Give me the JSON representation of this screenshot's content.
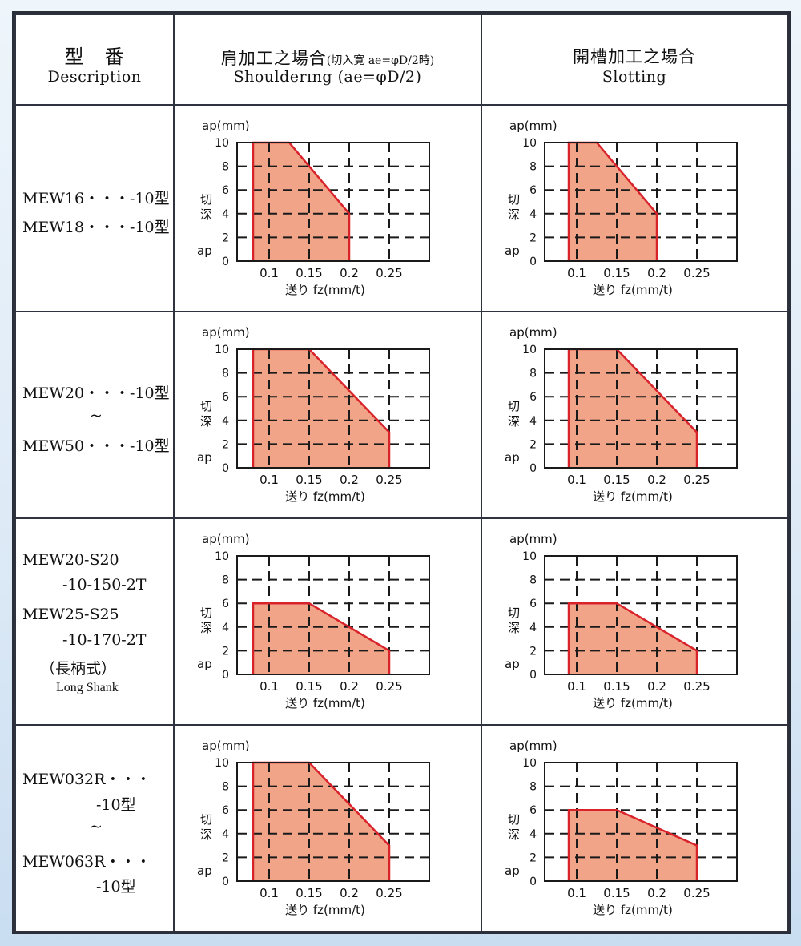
{
  "header": {
    "description_jp": "型　番",
    "description_en": "Description",
    "shouldering_jp_main": "肩加工之場合",
    "shouldering_jp_note": "(切入寛 ae=φD/2時)",
    "shouldering_en": "Shoulderıng (ae=φD/2)",
    "slotting_jp": "開槽加工之場合",
    "slotting_en": "Slotting"
  },
  "axis_text": {
    "y_title": "ap(mm)",
    "y_side_1": "切",
    "y_side_2": "深",
    "y_side_3": "ap",
    "x_title": "送り fz(mm/t)"
  },
  "colors": {
    "fill": "#f2a488",
    "line": "#d9232b",
    "grid": "#1a1a1a",
    "border": "#2f3340"
  },
  "rows": [
    {
      "desc": [
        "MEW16・・・-10型",
        "MEW18・・・-10型"
      ]
    },
    {
      "desc": [
        "MEW20・・・-10型",
        "~",
        "MEW50・・・-10型"
      ]
    },
    {
      "desc": [
        "MEW20-S20",
        "-10-150-2T",
        "MEW25-S25",
        "-10-170-2T",
        "（長柄式）",
        "Long Shank"
      ]
    },
    {
      "desc": [
        "MEW032R・・・",
        "-10型",
        "~",
        "MEW063R・・・",
        "-10型"
      ]
    }
  ],
  "chart_data": [
    {
      "type": "area",
      "row": 1,
      "mode": "Shouldering",
      "x": [
        0.08,
        0.08,
        0.125,
        0.2,
        0.2
      ],
      "y": [
        0,
        10,
        10,
        4,
        0
      ],
      "xlim": [
        0.06,
        0.3
      ],
      "ylim": [
        0,
        10
      ],
      "xticks": [
        "0.1",
        "0.15",
        "0.2",
        "0.25"
      ],
      "yticks": [
        "0",
        "2",
        "4",
        "6",
        "8",
        "10"
      ]
    },
    {
      "type": "area",
      "row": 1,
      "mode": "Slotting",
      "x": [
        0.09,
        0.09,
        0.125,
        0.2,
        0.2
      ],
      "y": [
        0,
        10,
        10,
        4,
        0
      ],
      "xlim": [
        0.06,
        0.3
      ],
      "ylim": [
        0,
        10
      ],
      "xticks": [
        "0.1",
        "0.15",
        "0.2",
        "0.25"
      ],
      "yticks": [
        "0",
        "2",
        "4",
        "6",
        "8",
        "10"
      ]
    },
    {
      "type": "area",
      "row": 2,
      "mode": "Shouldering",
      "x": [
        0.08,
        0.08,
        0.15,
        0.25,
        0.25
      ],
      "y": [
        0,
        10,
        10,
        3,
        0
      ],
      "xlim": [
        0.06,
        0.3
      ],
      "ylim": [
        0,
        10
      ],
      "xticks": [
        "0.1",
        "0.15",
        "0.2",
        "0.25"
      ],
      "yticks": [
        "0",
        "2",
        "4",
        "6",
        "8",
        "10"
      ]
    },
    {
      "type": "area",
      "row": 2,
      "mode": "Slotting",
      "x": [
        0.09,
        0.09,
        0.15,
        0.25,
        0.25
      ],
      "y": [
        0,
        10,
        10,
        3,
        0
      ],
      "xlim": [
        0.06,
        0.3
      ],
      "ylim": [
        0,
        10
      ],
      "xticks": [
        "0.1",
        "0.15",
        "0.2",
        "0.25"
      ],
      "yticks": [
        "0",
        "2",
        "4",
        "6",
        "8",
        "10"
      ]
    },
    {
      "type": "area",
      "row": 3,
      "mode": "Shouldering",
      "x": [
        0.08,
        0.08,
        0.15,
        0.25,
        0.25
      ],
      "y": [
        0,
        6,
        6,
        2,
        0
      ],
      "xlim": [
        0.06,
        0.3
      ],
      "ylim": [
        0,
        10
      ],
      "xticks": [
        "0.1",
        "0.15",
        "0.2",
        "0.25"
      ],
      "yticks": [
        "0",
        "2",
        "4",
        "6",
        "8",
        "10"
      ]
    },
    {
      "type": "area",
      "row": 3,
      "mode": "Slotting",
      "x": [
        0.09,
        0.09,
        0.15,
        0.25,
        0.25
      ],
      "y": [
        0,
        6,
        6,
        2,
        0
      ],
      "xlim": [
        0.06,
        0.3
      ],
      "ylim": [
        0,
        10
      ],
      "xticks": [
        "0.1",
        "0.15",
        "0.2",
        "0.25"
      ],
      "yticks": [
        "0",
        "2",
        "4",
        "6",
        "8",
        "10"
      ]
    },
    {
      "type": "area",
      "row": 4,
      "mode": "Shouldering",
      "x": [
        0.08,
        0.08,
        0.15,
        0.25,
        0.25
      ],
      "y": [
        0,
        10,
        10,
        3,
        0
      ],
      "xlim": [
        0.06,
        0.3
      ],
      "ylim": [
        0,
        10
      ],
      "xticks": [
        "0.1",
        "0.15",
        "0.2",
        "0.25"
      ],
      "yticks": [
        "0",
        "2",
        "4",
        "6",
        "8",
        "10"
      ]
    },
    {
      "type": "area",
      "row": 4,
      "mode": "Slotting",
      "x": [
        0.09,
        0.09,
        0.15,
        0.25,
        0.25
      ],
      "y": [
        0,
        6,
        6,
        3,
        0
      ],
      "xlim": [
        0.06,
        0.3
      ],
      "ylim": [
        0,
        10
      ],
      "xticks": [
        "0.1",
        "0.15",
        "0.2",
        "0.25"
      ],
      "yticks": [
        "0",
        "2",
        "4",
        "6",
        "8",
        "10"
      ]
    }
  ]
}
